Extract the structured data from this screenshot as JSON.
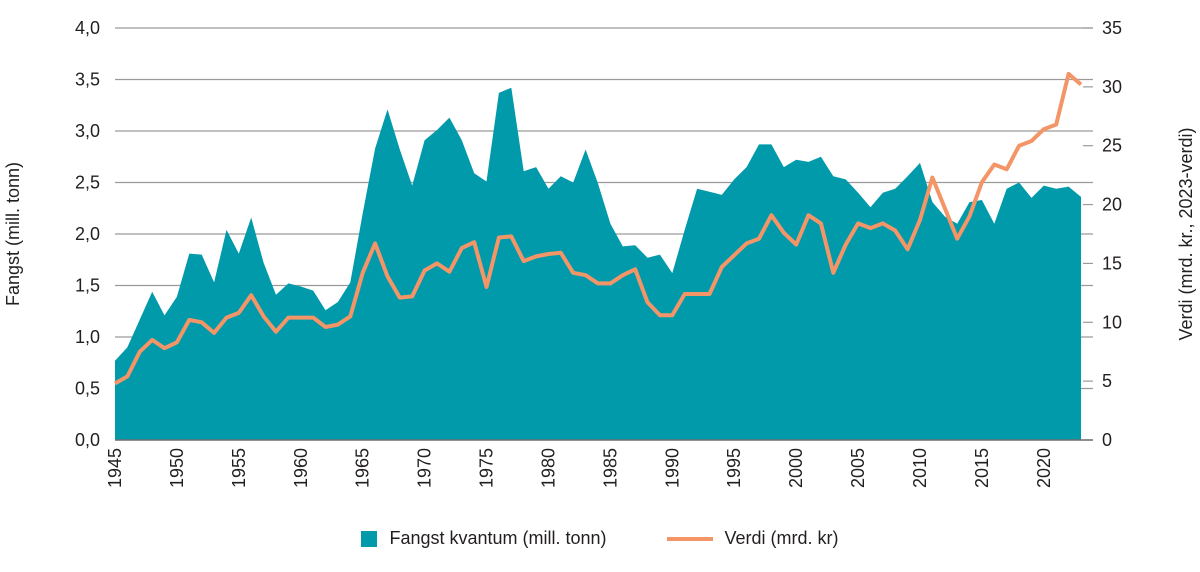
{
  "chart_data": {
    "type": "area+line",
    "x": [
      1945,
      1946,
      1947,
      1948,
      1949,
      1950,
      1951,
      1952,
      1953,
      1954,
      1955,
      1956,
      1957,
      1958,
      1959,
      1960,
      1961,
      1962,
      1963,
      1964,
      1965,
      1966,
      1967,
      1968,
      1969,
      1970,
      1971,
      1972,
      1973,
      1974,
      1975,
      1976,
      1977,
      1978,
      1979,
      1980,
      1981,
      1982,
      1983,
      1984,
      1985,
      1986,
      1987,
      1988,
      1989,
      1990,
      1991,
      1992,
      1993,
      1994,
      1995,
      1996,
      1997,
      1998,
      1999,
      2000,
      2001,
      2002,
      2003,
      2004,
      2005,
      2006,
      2007,
      2008,
      2009,
      2010,
      2011,
      2012,
      2013,
      2014,
      2015,
      2016,
      2017,
      2018,
      2019,
      2020,
      2021,
      2022,
      2023
    ],
    "x_ticks": [
      "1945",
      "1950",
      "1955",
      "1960",
      "1965",
      "1970",
      "1975",
      "1980",
      "1985",
      "1990",
      "1995",
      "2000",
      "2005",
      "2010",
      "2015",
      "2020"
    ],
    "ylabel_left": "Fangst (mill. tonn)",
    "ylabel_right": "Verdi (mrd. kr., 2023-verdi)",
    "y_left_lim": [
      0,
      4
    ],
    "y_right_lim": [
      0,
      35
    ],
    "y_left_ticks": [
      "0,0",
      "0,5",
      "1,0",
      "1,5",
      "2,0",
      "2,5",
      "3,0",
      "3,5",
      "4,0"
    ],
    "y_right_ticks": [
      "0",
      "5",
      "10",
      "15",
      "20",
      "25",
      "30",
      "35"
    ],
    "grid": true,
    "legend_position": "bottom",
    "series": [
      {
        "name": "Fangst kvantum (mill. tonn)",
        "type": "area",
        "axis": "left",
        "color": "#009aab",
        "values": [
          0.77,
          0.9,
          1.17,
          1.44,
          1.21,
          1.39,
          1.81,
          1.8,
          1.53,
          2.04,
          1.81,
          2.16,
          1.72,
          1.41,
          1.52,
          1.49,
          1.45,
          1.26,
          1.34,
          1.53,
          2.2,
          2.83,
          3.21,
          2.82,
          2.47,
          2.91,
          3.01,
          3.13,
          2.91,
          2.59,
          2.51,
          3.37,
          3.42,
          2.61,
          2.65,
          2.44,
          2.56,
          2.5,
          2.82,
          2.49,
          2.1,
          1.88,
          1.89,
          1.77,
          1.8,
          1.62,
          2.04,
          2.44,
          2.41,
          2.38,
          2.53,
          2.65,
          2.87,
          2.87,
          2.65,
          2.72,
          2.7,
          2.75,
          2.56,
          2.53,
          2.4,
          2.26,
          2.4,
          2.44,
          2.56,
          2.69,
          2.31,
          2.17,
          2.1,
          2.31,
          2.33,
          2.1,
          2.44,
          2.5,
          2.35,
          2.47,
          2.44,
          2.46,
          2.36
        ]
      },
      {
        "name": "Verdi (mrd. kr)",
        "type": "line",
        "axis": "right",
        "color": "#f39567",
        "values": [
          4.8,
          5.4,
          7.5,
          8.5,
          7.8,
          8.3,
          10.2,
          10.0,
          9.1,
          10.4,
          10.8,
          12.3,
          10.5,
          9.2,
          10.4,
          10.4,
          10.4,
          9.6,
          9.8,
          10.5,
          14.2,
          16.7,
          13.9,
          12.1,
          12.2,
          14.4,
          15.0,
          14.3,
          16.3,
          16.8,
          13.0,
          17.2,
          17.3,
          15.2,
          15.6,
          15.8,
          15.9,
          14.2,
          14.0,
          13.3,
          13.3,
          14.0,
          14.5,
          11.7,
          10.6,
          10.6,
          12.4,
          12.4,
          12.4,
          14.7,
          15.7,
          16.7,
          17.1,
          19.1,
          17.6,
          16.6,
          19.1,
          18.4,
          14.2,
          16.6,
          18.4,
          18.0,
          18.4,
          17.8,
          16.2,
          18.7,
          22.3,
          19.7,
          17.1,
          19.0,
          21.9,
          23.4,
          23.0,
          25.0,
          25.4,
          26.4,
          26.8,
          31.1,
          30.2
        ]
      }
    ]
  }
}
